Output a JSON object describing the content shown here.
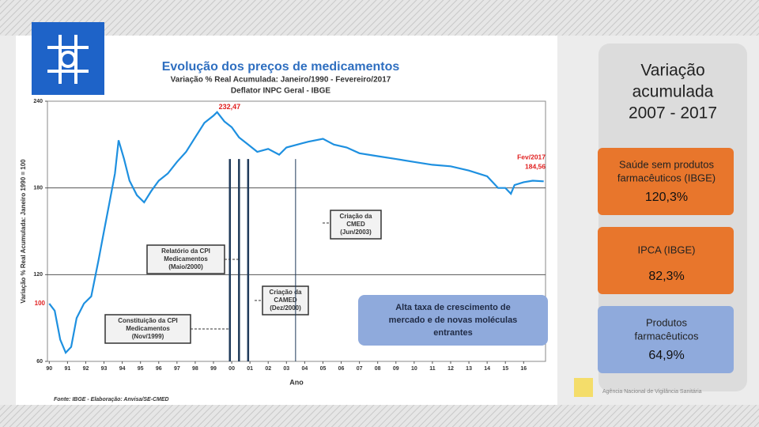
{
  "chart_data": {
    "type": "line",
    "title": "Evolução dos preços de medicamentos",
    "subtitle": [
      "Variação % Real Acumulada: Janeiro/1990 - Fevereiro/2017",
      "Deflator INPC Geral - IBGE"
    ],
    "y_label": "Variação % Real Acumulada: Janeiro 1990 = 100",
    "x_label": "Ano",
    "source": "Fonte: IBGE - Elaboração: Anvisa/SE-CMED",
    "xlim": [
      1989.9,
      2017.2
    ],
    "ylim": [
      60,
      240
    ],
    "yticks": [
      60,
      120,
      180,
      240
    ],
    "grid_values": [
      120,
      180
    ],
    "xticks": [
      {
        "value": 1990,
        "label": "90"
      },
      {
        "value": 1991,
        "label": "91"
      },
      {
        "value": 1992,
        "label": "92"
      },
      {
        "value": 1993,
        "label": "93"
      },
      {
        "value": 1994,
        "label": "94"
      },
      {
        "value": 1995,
        "label": "95"
      },
      {
        "value": 1996,
        "label": "96"
      },
      {
        "value": 1997,
        "label": "97"
      },
      {
        "value": 1998,
        "label": "98"
      },
      {
        "value": 1999,
        "label": "99"
      },
      {
        "value": 2000,
        "label": "00"
      },
      {
        "value": 2001,
        "label": "01"
      },
      {
        "value": 2002,
        "label": "02"
      },
      {
        "value": 2003,
        "label": "03"
      },
      {
        "value": 2004,
        "label": "04"
      },
      {
        "value": 2005,
        "label": "05"
      },
      {
        "value": 2006,
        "label": "06"
      },
      {
        "value": 2007,
        "label": "07"
      },
      {
        "value": 2008,
        "label": "08"
      },
      {
        "value": 2009,
        "label": "09"
      },
      {
        "value": 2010,
        "label": "10"
      },
      {
        "value": 2011,
        "label": "11"
      },
      {
        "value": 2012,
        "label": "12"
      },
      {
        "value": 2013,
        "label": "13"
      },
      {
        "value": 2014,
        "label": "14"
      },
      {
        "value": 2015,
        "label": "15"
      },
      {
        "value": 2016,
        "label": "16"
      }
    ],
    "series": [
      {
        "color": "#1e90e0",
        "x": [
          1990.0,
          1990.3,
          1990.6,
          1990.9,
          1991.2,
          1991.5,
          1991.9,
          1992.3,
          1992.7,
          1993.0,
          1993.3,
          1993.6,
          1993.8,
          1994.1,
          1994.4,
          1994.8,
          1995.2,
          1995.6,
          1996.0,
          1996.5,
          1997.0,
          1997.5,
          1998.0,
          1998.5,
          1999.0,
          1999.2,
          1999.6,
          2000.0,
          2000.4,
          2000.9,
          2001.4,
          2002.0,
          2002.6,
          2003.0,
          2003.6,
          2004.2,
          2005.0,
          2005.6,
          2006.3,
          2007.0,
          2008.0,
          2009.0,
          2010.0,
          2011.0,
          2012.0,
          2013.0,
          2014.0,
          2014.6,
          2015.0,
          2015.3,
          2015.5,
          2016.0,
          2016.5,
          2017.1
        ],
        "values": [
          100,
          95,
          75,
          66,
          70,
          90,
          100,
          105,
          130,
          150,
          170,
          190,
          213,
          200,
          185,
          175,
          170,
          178,
          185,
          190,
          198,
          205,
          215,
          225,
          230,
          232.47,
          226,
          222,
          215,
          210,
          205,
          207,
          203,
          208,
          210,
          212,
          214,
          210,
          208,
          204,
          202,
          200,
          198,
          196,
          195,
          192,
          188,
          180,
          180,
          176,
          182,
          184,
          185,
          184.56
        ]
      }
    ],
    "annotations": [
      {
        "x": 1999.2,
        "y": 232.47,
        "label": "232,47"
      },
      {
        "x": 1990.0,
        "y": 100,
        "label": "100"
      },
      {
        "x": 2017.1,
        "y": 184.56,
        "label": [
          "Fev/2017",
          "184,56"
        ]
      }
    ],
    "events": [
      {
        "x": 1999.9,
        "label": [
          "Constituição da CPI",
          "Medicamentos",
          "(Nov/1999)"
        ]
      },
      {
        "x": 2000.4,
        "label": [
          "Relatório da CPI",
          "Medicamentos",
          "(Maio/2000)"
        ]
      },
      {
        "x": 2000.9,
        "label": [
          "Criação da",
          "CAMED",
          "(Dez/2000)"
        ]
      },
      {
        "x": 2003.5,
        "label": [
          "Criação da",
          "CMED",
          "(Jun/2003)"
        ]
      }
    ],
    "callout": [
      "Alta taxa de crescimento de",
      "mercado e de novas moléculas",
      "entrantes"
    ]
  },
  "panel": {
    "title": [
      "Variação",
      "acumulada",
      "2007 - 2017"
    ],
    "cards": [
      {
        "label": [
          "Saúde sem produtos",
          "farmacêuticos (IBGE)"
        ],
        "value": "120,3%",
        "color": "#e8762c"
      },
      {
        "label": [
          "IPCA (IBGE)"
        ],
        "value": "82,3%",
        "color": "#e8762c"
      },
      {
        "label": [
          "Produtos",
          "farmacêuticos"
        ],
        "value": "64,9%",
        "color": "#8faadc"
      }
    ]
  },
  "footer": "Agência Nacional de Vigilância Sanitária"
}
